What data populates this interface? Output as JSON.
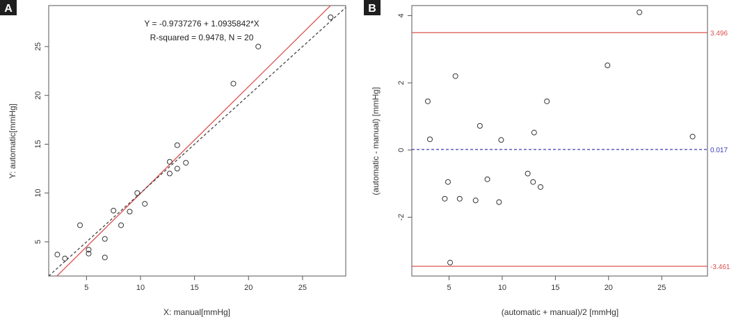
{
  "panels": {
    "a_label": "A",
    "b_label": "B"
  },
  "chart_data": [
    {
      "type": "scatter",
      "panel": "A",
      "title": "",
      "annotations": {
        "equation": "Y =  -0.9737276 + 1.0935842*X",
        "stats": "R-squared = 0.9478,   N = 20"
      },
      "xlabel": "X: manual[mmHg]",
      "ylabel": "Y: automatic[mmHg]",
      "xlim": [
        1.5,
        29
      ],
      "ylim": [
        1.5,
        29.2
      ],
      "x_ticks": [
        5,
        10,
        15,
        20,
        25
      ],
      "x_tick_labels": [
        "5",
        "10",
        "15",
        "20",
        "25"
      ],
      "y_ticks": [
        5,
        10,
        15,
        20,
        25
      ],
      "y_tick_labels": [
        "5",
        "10",
        "15",
        "20",
        "25"
      ],
      "grid": false,
      "lines": [
        {
          "name": "regression",
          "intercept": -0.9737276,
          "slope": 1.0935842,
          "color": "#d9534f",
          "style": "solid"
        },
        {
          "name": "identity",
          "intercept": 0,
          "slope": 1,
          "color": "#444444",
          "style": "dashed"
        }
      ],
      "points": [
        {
          "x": 2.3,
          "y": 3.7
        },
        {
          "x": 3.0,
          "y": 3.3
        },
        {
          "x": 4.4,
          "y": 6.7
        },
        {
          "x": 5.2,
          "y": 4.2
        },
        {
          "x": 5.2,
          "y": 3.8
        },
        {
          "x": 6.7,
          "y": 5.3
        },
        {
          "x": 6.7,
          "y": 3.4
        },
        {
          "x": 7.5,
          "y": 8.2
        },
        {
          "x": 8.2,
          "y": 6.7
        },
        {
          "x": 9.0,
          "y": 8.1
        },
        {
          "x": 9.7,
          "y": 10.0
        },
        {
          "x": 10.4,
          "y": 8.9
        },
        {
          "x": 12.7,
          "y": 13.2
        },
        {
          "x": 12.7,
          "y": 12.0
        },
        {
          "x": 13.4,
          "y": 14.9
        },
        {
          "x": 13.4,
          "y": 12.5
        },
        {
          "x": 14.2,
          "y": 13.1
        },
        {
          "x": 18.6,
          "y": 21.2
        },
        {
          "x": 20.9,
          "y": 25.0
        },
        {
          "x": 27.6,
          "y": 28.0
        }
      ]
    },
    {
      "type": "scatter",
      "panel": "B",
      "title": "",
      "xlabel": "(automatic + manual)/2 [mmHg]",
      "ylabel": "(automatic - manual) [mmHg]",
      "xlim": [
        1.5,
        29.3
      ],
      "ylim": [
        -3.75,
        4.3
      ],
      "x_ticks": [
        5,
        10,
        15,
        20,
        25
      ],
      "x_tick_labels": [
        "5",
        "10",
        "15",
        "20",
        "25"
      ],
      "y_ticks": [
        4,
        2,
        0,
        -2
      ],
      "y_tick_labels": [
        "4",
        "2",
        "0",
        "-2"
      ],
      "grid": false,
      "reference_lines": [
        {
          "name": "upper-limit",
          "value": 3.496,
          "label": "3.496",
          "color": "#d9534f",
          "style": "solid"
        },
        {
          "name": "mean-difference",
          "value": 0.017,
          "label": "0.017",
          "color": "#3b3bb5",
          "style": "dashed"
        },
        {
          "name": "lower-limit",
          "value": -3.461,
          "label": "-3.461",
          "color": "#d9534f",
          "style": "solid"
        }
      ],
      "points": [
        {
          "x": 3.0,
          "y": 1.45
        },
        {
          "x": 3.2,
          "y": 0.32
        },
        {
          "x": 4.6,
          "y": -1.45
        },
        {
          "x": 4.9,
          "y": -0.95
        },
        {
          "x": 5.1,
          "y": -3.35
        },
        {
          "x": 5.6,
          "y": 2.2
        },
        {
          "x": 6.0,
          "y": -1.45
        },
        {
          "x": 7.5,
          "y": -1.5
        },
        {
          "x": 7.9,
          "y": 0.72
        },
        {
          "x": 8.6,
          "y": -0.87
        },
        {
          "x": 9.7,
          "y": -1.55
        },
        {
          "x": 9.9,
          "y": 0.3
        },
        {
          "x": 12.4,
          "y": -0.7
        },
        {
          "x": 12.9,
          "y": -0.95
        },
        {
          "x": 13.0,
          "y": 0.52
        },
        {
          "x": 13.6,
          "y": -1.1
        },
        {
          "x": 14.2,
          "y": 1.45
        },
        {
          "x": 19.9,
          "y": 2.52
        },
        {
          "x": 22.9,
          "y": 4.1
        },
        {
          "x": 27.9,
          "y": 0.4
        }
      ]
    }
  ]
}
